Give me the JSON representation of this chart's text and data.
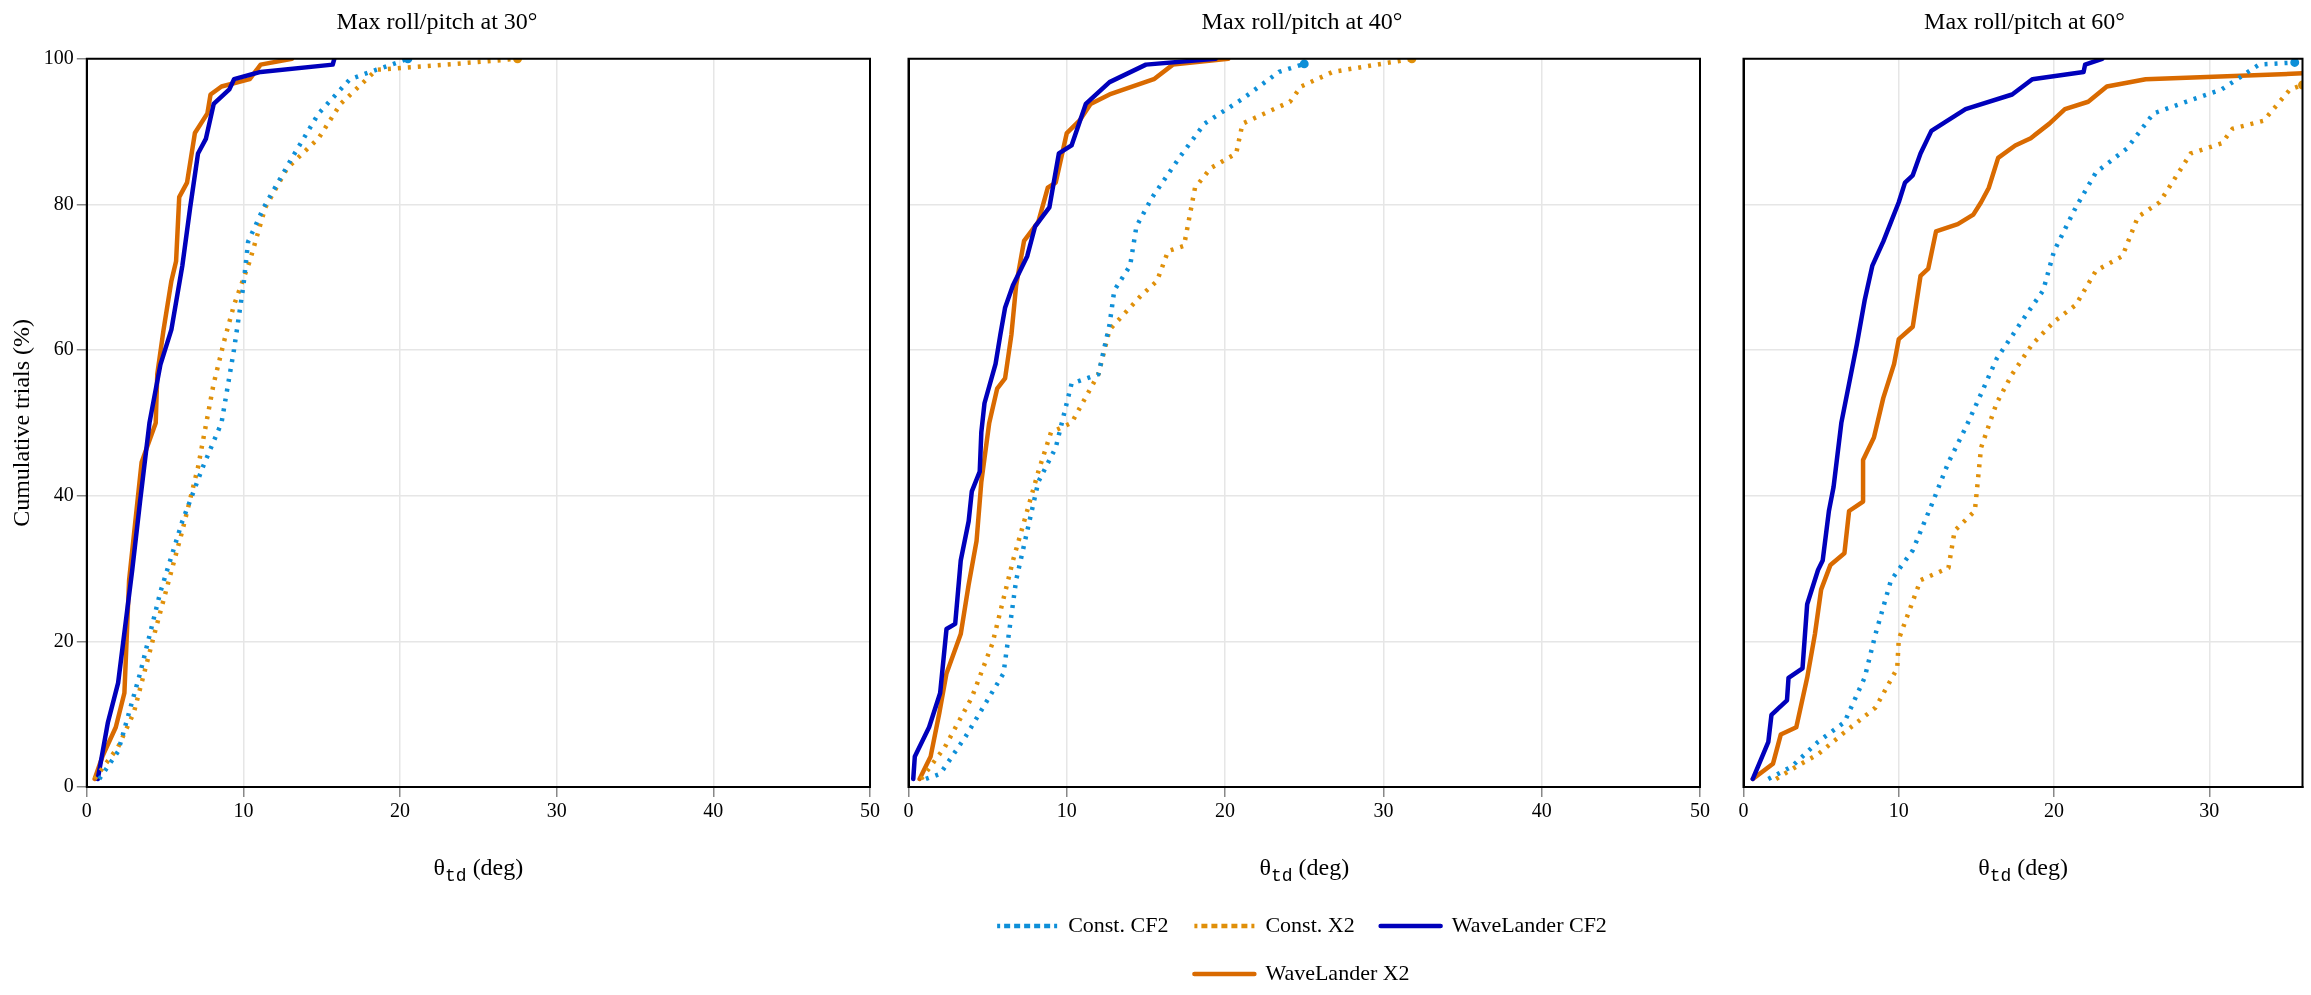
{
  "chart_data": [
    {
      "type": "line",
      "title": "Max roll/pitch at 30°",
      "xlabel": "θ$_{td}$ (deg)",
      "ylabel": "Cumulative trials (%)",
      "xlim": [
        0,
        50
      ],
      "xticks": [
        0,
        10,
        20,
        30,
        40,
        50
      ],
      "ylim": [
        0,
        100
      ],
      "yticks": [
        0,
        20,
        40,
        60,
        80,
        100
      ],
      "grid": true,
      "legend": false,
      "marker": "none",
      "series": [
        {
          "color": "#0e8fd8",
          "line_style": "dotted",
          "x": [
            0.8,
            2,
            3.4,
            4.7,
            6.1,
            7.4,
            8.6,
            9.4,
            10,
            10.3,
            11.3,
            13.1,
            14.8,
            16.8,
            18.5,
            20.5
          ],
          "values": [
            1.1,
            4.9,
            15.6,
            26.8,
            36.5,
            43.9,
            50,
            60.1,
            68.9,
            74.9,
            79.6,
            86.4,
            92.5,
            97.2,
            98.5,
            100
          ]
        },
        {
          "color": "#e0900a",
          "line_style": "dotted",
          "x": [
            0.5,
            2,
            3,
            4.4,
            6.1,
            7.1,
            8.1,
            8.8,
            9.4,
            10.4,
            11.4,
            12.8,
            14.8,
            16.2,
            18.5,
            22.9,
            27.5
          ],
          "values": [
            1.1,
            5.5,
            10.2,
            21.7,
            35.2,
            43.9,
            55.4,
            61.5,
            66.2,
            72.2,
            79.6,
            85,
            89.1,
            93.8,
            98.5,
            99.2,
            100
          ]
        },
        {
          "color": "#0000bb",
          "line_style": "solid",
          "x": [
            0.7,
            1.35,
            2,
            2.9,
            3.4,
            4,
            4.7,
            5.4,
            6.1,
            6.6,
            7.1,
            7.6,
            8.1,
            9.1,
            9.4,
            11.1,
            15.7,
            15.8
          ],
          "values": [
            1.1,
            8.9,
            14.3,
            29.8,
            39.2,
            50,
            58,
            62.8,
            71.6,
            79.6,
            87,
            89,
            93.8,
            95.8,
            97.2,
            98.2,
            99.2,
            100
          ]
        },
        {
          "color": "#d96a00",
          "line_style": "solid",
          "x": [
            0.5,
            1,
            1.85,
            2.4,
            2.7,
            3.5,
            4.4,
            4.5,
            4.9,
            5.4,
            5.7,
            5.9,
            6.4,
            6.9,
            7.7,
            7.9,
            8.6,
            10.4,
            11.1,
            13.1
          ],
          "values": [
            1.1,
            4.2,
            8.2,
            12.9,
            28.4,
            44.6,
            50,
            56.7,
            62.8,
            69.5,
            72.2,
            81,
            83,
            89.8,
            92.5,
            95.1,
            96.2,
            97.2,
            99.2,
            100
          ]
        }
      ]
    },
    {
      "type": "line",
      "title": "Max roll/pitch at 40°",
      "xlabel": "θ$_{td}$ (deg)",
      "xlim": [
        0,
        50
      ],
      "xticks": [
        0,
        10,
        20,
        30,
        40,
        50
      ],
      "ylim": [
        0,
        100
      ],
      "yticks": [
        0,
        20,
        40,
        60,
        80,
        100
      ],
      "tick_labels": "x",
      "grid": true,
      "legend": "bottom",
      "marker": "none",
      "series": [
        {
          "name": "Const. CF2",
          "color": "#0e8fd8",
          "line_style": "dotted",
          "x": [
            1.1,
            2,
            3.6,
            6,
            6.8,
            8.2,
            9.3,
            10.3,
            12,
            12.7,
            13,
            14,
            14.4,
            15.4,
            17.1,
            18.7,
            21.1,
            23.4,
            25
          ],
          "values": [
            1.1,
            1.8,
            6.9,
            15.6,
            28.4,
            41.9,
            46.6,
            55.4,
            56.7,
            63.5,
            68.2,
            71.6,
            77,
            81,
            86.4,
            91.1,
            94.5,
            98.2,
            99.3
          ]
        },
        {
          "name": "Const. X2",
          "color": "#e0900a",
          "line_style": "dotted",
          "x": [
            0.8,
            2.3,
            4,
            5.3,
            6.6,
            8.2,
            9,
            10.3,
            12,
            12.7,
            14.7,
            15.7,
            16.4,
            17.4,
            18.1,
            19.1,
            20.7,
            21.1,
            24.1,
            24.8,
            26.8,
            31.8
          ],
          "values": [
            1.1,
            5.5,
            12.3,
            19.7,
            31.1,
            43.3,
            48.7,
            50,
            56.7,
            62.8,
            67.5,
            69.5,
            73.6,
            74.3,
            82.3,
            85,
            87,
            91.1,
            94.1,
            96.2,
            98.2,
            100
          ]
        },
        {
          "name": "WaveLander CF2",
          "color": "#0000bb",
          "line_style": "solid",
          "x": [
            0.3,
            0.4,
            1.3,
            2,
            2.4,
            2.95,
            3.3,
            3.8,
            4,
            4.5,
            4.6,
            4.8,
            5.5,
            5.8,
            6.1,
            6.6,
            7.5,
            8,
            8.9,
            9.5,
            10.3,
            11.2,
            12.7,
            15,
            19.4
          ],
          "values": [
            1.1,
            4.2,
            8.2,
            12.9,
            21.7,
            22.4,
            31.1,
            36.5,
            40.6,
            43.3,
            48.7,
            52.7,
            58.1,
            62.1,
            65.8,
            68.9,
            72.9,
            77,
            79.6,
            87,
            88.1,
            93.8,
            96.8,
            99.2,
            100
          ]
        },
        {
          "name": "WaveLander X2",
          "color": "#d96a00",
          "line_style": "solid",
          "x": [
            0.7,
            1.4,
            1.95,
            2.4,
            3.3,
            3.8,
            4.3,
            4.6,
            5.1,
            5.6,
            6.1,
            6.5,
            6.8,
            7.3,
            8.2,
            8.8,
            9.3,
            10,
            10.8,
            11.5,
            12.7,
            15.5,
            16.7,
            20.2
          ],
          "values": [
            1.1,
            4.2,
            10.2,
            15.6,
            21,
            27.8,
            33.8,
            41.9,
            50,
            54.7,
            56.1,
            62.1,
            68.9,
            75,
            77.6,
            82.3,
            83,
            89.8,
            91.5,
            93.8,
            95.1,
            97.2,
            99.2,
            100
          ]
        }
      ]
    },
    {
      "type": "line",
      "title": "Max roll/pitch at 60°",
      "xlabel": "θ$_{td}$ (deg)",
      "xlim": [
        0,
        36
      ],
      "xticks": [
        0,
        10,
        20,
        30
      ],
      "ylim": [
        0,
        100
      ],
      "yticks": [
        0,
        20,
        40,
        60,
        80,
        100
      ],
      "tick_labels": "x",
      "grid": true,
      "legend": false,
      "marker": "none",
      "series": [
        {
          "color": "#0e8fd8",
          "line_style": "dotted",
          "x": [
            1.6,
            3.1,
            4.8,
            6.5,
            7.8,
            8.5,
            9.5,
            10.9,
            12.2,
            13.2,
            14.3,
            15.3,
            16.3,
            18,
            19.3,
            20,
            21.4,
            22.7,
            24.7,
            26.4,
            28.5,
            30.8,
            33.2,
            35.5
          ],
          "values": [
            1.1,
            2.8,
            6.2,
            8.9,
            15,
            21,
            28.4,
            32.5,
            39.2,
            44.6,
            49.3,
            54,
            58.8,
            64.2,
            68.2,
            73.6,
            79.6,
            84.4,
            87.7,
            92.5,
            94.1,
            95.8,
            99.2,
            99.5
          ]
        },
        {
          "color": "#e0900a",
          "line_style": "dotted",
          "x": [
            2.1,
            3.4,
            4.8,
            6.5,
            8.5,
            9.9,
            10,
            11.4,
            13.2,
            13.6,
            14.9,
            15.3,
            16.3,
            17.3,
            18.6,
            20,
            21.4,
            22.7,
            24.4,
            25.4,
            26.8,
            28.8,
            30.8,
            31.5,
            33.5,
            35.2,
            36
          ],
          "values": [
            1.1,
            2.8,
            4.5,
            7.5,
            10.9,
            16.3,
            20.3,
            28.4,
            30.1,
            35.2,
            37.9,
            46.6,
            52.7,
            56.7,
            60.8,
            63.9,
            66.2,
            70.9,
            72.9,
            78.3,
            80.3,
            87,
            88.4,
            90.4,
            91.5,
            95.8,
            96.4
          ]
        },
        {
          "color": "#0000bb",
          "line_style": "solid",
          "x": [
            0.6,
            1.6,
            1.8,
            2.8,
            2.9,
            3.8,
            4.1,
            4.8,
            5.1,
            5.5,
            5.8,
            6.3,
            6.8,
            7.3,
            7.8,
            8.3,
            9,
            9.5,
            10,
            10.4,
            10.9,
            11.4,
            12.1,
            14.3,
            17.3,
            18.6,
            21.9,
            22,
            23.1
          ],
          "values": [
            1.1,
            6.2,
            9.9,
            11.9,
            15,
            16.3,
            25.1,
            29.8,
            31.1,
            37.9,
            41.2,
            50,
            55.4,
            60.8,
            66.8,
            71.6,
            74.9,
            77.6,
            80.3,
            83,
            84,
            87,
            90.1,
            93.1,
            95.1,
            97.2,
            98.2,
            99.2,
            100
          ]
        },
        {
          "color": "#d96a00",
          "line_style": "solid",
          "x": [
            0.6,
            1.9,
            2.4,
            3.4,
            4.1,
            4.6,
            5,
            5.6,
            6.5,
            6.8,
            7.7,
            7.7,
            8.4,
            9,
            9.7,
            10,
            10.9,
            11.4,
            11.9,
            12.4,
            13.8,
            14.8,
            15.3,
            15.8,
            16.4,
            17.5,
            18.5,
            19.7,
            20.7,
            22.2,
            23.4,
            25.9,
            36
          ],
          "values": [
            1.1,
            3.2,
            7.2,
            8.2,
            15,
            21,
            27.1,
            30.5,
            32.1,
            37.9,
            39.2,
            44.9,
            48,
            53.4,
            58.1,
            61.5,
            63.2,
            70.2,
            71.2,
            76.3,
            77.3,
            78.6,
            80.3,
            82.3,
            86.4,
            88.1,
            89.1,
            91.1,
            93.1,
            94.1,
            96.2,
            97.2,
            98
          ]
        }
      ]
    }
  ]
}
